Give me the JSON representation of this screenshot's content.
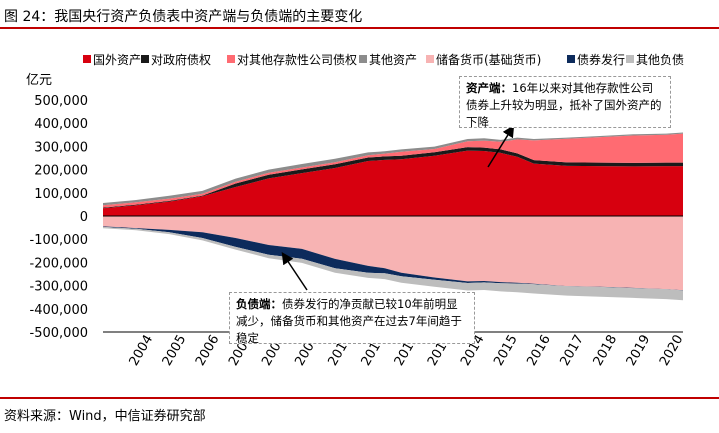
{
  "figure": {
    "title": "图 24：我国央行资产负债表中资产端与负债端的主要变化",
    "source": "资料来源：Wind，中信证券研究部"
  },
  "annotations": {
    "asset": {
      "head": "资产端：",
      "text": "16年以来对其他存款性公司债券上升较为明显，抵补了国外资产的下降"
    },
    "liability": {
      "head": "负债端：",
      "text": "债券发行的净贡献已较10年前明显减少，储备货币和其他资产在过去7年间趋于稳定"
    }
  },
  "colors": {
    "foreign_assets": "#d7000f",
    "gov_claims": "#1a1a1a",
    "claims_odc": "#ff6b72",
    "other_assets": "#8c8c8c",
    "reserve_money": "#f7b3b3",
    "bond_issuance": "#0d2b5c",
    "other_liabilities": "#bdbdbd"
  },
  "chart_data": {
    "type": "area",
    "ylabel": "亿元",
    "ylim": [
      -500000,
      500000
    ],
    "yticks": [
      "500,000",
      "400,000",
      "300,000",
      "200,000",
      "100,000",
      "0",
      "-100,000",
      "-200,000",
      "-300,000",
      "-400,000",
      "-500,000"
    ],
    "xticks": [
      "2004",
      "2005",
      "2006",
      "2007",
      "2008",
      "2009",
      "2010",
      "2011",
      "2012",
      "2013",
      "2014",
      "2015",
      "2016",
      "2017",
      "2018",
      "2019",
      "2020"
    ],
    "legend": [
      "国外资产",
      "对政府债权",
      "对其他存款性公司债权",
      "其他资产",
      "储备货币(基础货币)",
      "债券发行",
      "其他负债"
    ],
    "x": [
      2003.0,
      2004.0,
      2005.0,
      2006.0,
      2007.0,
      2008.0,
      2009.0,
      2010.0,
      2011.0,
      2011.5,
      2012.0,
      2013.0,
      2014.0,
      2014.5,
      2015.0,
      2015.5,
      2016.0,
      2017.0,
      2018.0,
      2019.0,
      2020.0,
      2020.5
    ],
    "series": [
      {
        "name": "国外资产",
        "stack": "assets",
        "values": [
          33000,
          46000,
          62000,
          85000,
          125000,
          162000,
          185000,
          207000,
          237000,
          242000,
          245000,
          260000,
          282000,
          280000,
          272000,
          255000,
          226000,
          216000,
          215000,
          214000,
          215000,
          215000
        ]
      },
      {
        "name": "对政府债权",
        "stack": "assets",
        "values": [
          3000,
          3000,
          3000,
          3000,
          15000,
          16000,
          16000,
          16000,
          15000,
          15000,
          15000,
          15000,
          15000,
          15000,
          15000,
          15000,
          15000,
          15000,
          15000,
          15000,
          15000,
          15000
        ]
      },
      {
        "name": "对其他存款性公司债权",
        "stack": "assets",
        "values": [
          10000,
          10000,
          10000,
          8000,
          8000,
          8000,
          8000,
          9000,
          10000,
          12000,
          17000,
          14000,
          25000,
          30000,
          33000,
          60000,
          85000,
          102000,
          110000,
          118000,
          120000,
          125000
        ]
      },
      {
        "name": "其他资产",
        "stack": "assets",
        "values": [
          10000,
          10000,
          12000,
          12000,
          13000,
          14000,
          15000,
          15000,
          12000,
          10000,
          10000,
          10000,
          10000,
          10000,
          8000,
          8000,
          6000,
          5000,
          5000,
          5000,
          5000,
          5000
        ]
      },
      {
        "name": "储备货币(基础货币)",
        "stack": "liabilities",
        "values": [
          -45000,
          -52000,
          -60000,
          -70000,
          -95000,
          -125000,
          -142000,
          -185000,
          -215000,
          -225000,
          -245000,
          -265000,
          -282000,
          -280000,
          -285000,
          -288000,
          -292000,
          -302000,
          -305000,
          -310000,
          -315000,
          -320000
        ]
      },
      {
        "name": "债券发行",
        "stack": "liabilities",
        "values": [
          -2000,
          -3000,
          -10000,
          -25000,
          -38000,
          -42000,
          -42000,
          -40000,
          -30000,
          -22000,
          -15000,
          -10000,
          -7000,
          -6000,
          -5000,
          -3000,
          -2000,
          -1000,
          -1000,
          -1000,
          -1000,
          -1000
        ]
      },
      {
        "name": "其他负债",
        "stack": "liabilities",
        "values": [
          -6000,
          -6000,
          -8000,
          -10000,
          -12000,
          -15000,
          -18000,
          -20000,
          -22000,
          -25000,
          -28000,
          -30000,
          -32000,
          -33000,
          -35000,
          -38000,
          -40000,
          -40000,
          -42000,
          -42000,
          -42000,
          -42000
        ]
      }
    ]
  }
}
